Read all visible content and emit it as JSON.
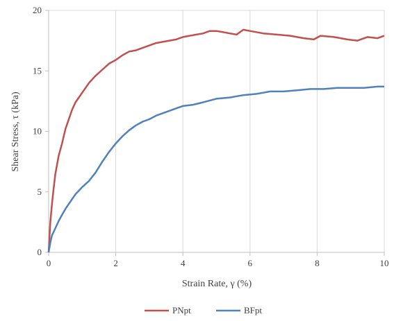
{
  "chart_data": {
    "type": "line",
    "title": "",
    "xlabel": "Strain Rate, γ (%)",
    "ylabel": "Shear Stress, τ (kPa)",
    "xlim": [
      0,
      10
    ],
    "ylim": [
      0,
      20
    ],
    "x_ticks": [
      0,
      2,
      4,
      6,
      8,
      10
    ],
    "y_ticks": [
      0,
      5,
      10,
      15,
      20
    ],
    "x_tick_labels": [
      "0",
      "2",
      "4",
      "6",
      "8",
      "10"
    ],
    "y_tick_labels": [
      "0",
      "5",
      "10",
      "15",
      "20"
    ],
    "grid": "vertical",
    "legend_position": "bottom",
    "series": [
      {
        "name": "PNpt",
        "color": "#c0504d",
        "points": [
          [
            0,
            0
          ],
          [
            0.05,
            2.5
          ],
          [
            0.1,
            4.0
          ],
          [
            0.15,
            5.3
          ],
          [
            0.2,
            6.5
          ],
          [
            0.3,
            8.0
          ],
          [
            0.4,
            9.0
          ],
          [
            0.5,
            10.2
          ],
          [
            0.6,
            11.0
          ],
          [
            0.7,
            11.8
          ],
          [
            0.8,
            12.4
          ],
          [
            0.9,
            12.8
          ],
          [
            1.0,
            13.2
          ],
          [
            1.2,
            14.0
          ],
          [
            1.4,
            14.6
          ],
          [
            1.6,
            15.1
          ],
          [
            1.8,
            15.6
          ],
          [
            2.0,
            15.9
          ],
          [
            2.2,
            16.3
          ],
          [
            2.4,
            16.6
          ],
          [
            2.6,
            16.7
          ],
          [
            2.8,
            16.9
          ],
          [
            3.0,
            17.1
          ],
          [
            3.2,
            17.3
          ],
          [
            3.4,
            17.4
          ],
          [
            3.6,
            17.5
          ],
          [
            3.8,
            17.6
          ],
          [
            4.0,
            17.8
          ],
          [
            4.2,
            17.9
          ],
          [
            4.4,
            18.0
          ],
          [
            4.6,
            18.1
          ],
          [
            4.8,
            18.3
          ],
          [
            5.0,
            18.3
          ],
          [
            5.2,
            18.2
          ],
          [
            5.4,
            18.1
          ],
          [
            5.6,
            18.0
          ],
          [
            5.8,
            18.4
          ],
          [
            6.0,
            18.3
          ],
          [
            6.4,
            18.1
          ],
          [
            6.8,
            18.0
          ],
          [
            7.2,
            17.9
          ],
          [
            7.6,
            17.7
          ],
          [
            7.9,
            17.6
          ],
          [
            8.1,
            17.9
          ],
          [
            8.5,
            17.8
          ],
          [
            8.9,
            17.6
          ],
          [
            9.2,
            17.5
          ],
          [
            9.5,
            17.8
          ],
          [
            9.8,
            17.7
          ],
          [
            10.0,
            17.9
          ]
        ]
      },
      {
        "name": "BFpt",
        "color": "#4f81bd",
        "points": [
          [
            0,
            0
          ],
          [
            0.05,
            0.8
          ],
          [
            0.1,
            1.4
          ],
          [
            0.2,
            2.0
          ],
          [
            0.3,
            2.6
          ],
          [
            0.4,
            3.1
          ],
          [
            0.5,
            3.6
          ],
          [
            0.6,
            4.0
          ],
          [
            0.7,
            4.4
          ],
          [
            0.8,
            4.8
          ],
          [
            0.9,
            5.1
          ],
          [
            1.0,
            5.4
          ],
          [
            1.2,
            5.9
          ],
          [
            1.4,
            6.6
          ],
          [
            1.6,
            7.5
          ],
          [
            1.8,
            8.3
          ],
          [
            2.0,
            9.0
          ],
          [
            2.2,
            9.6
          ],
          [
            2.4,
            10.1
          ],
          [
            2.6,
            10.5
          ],
          [
            2.8,
            10.8
          ],
          [
            3.0,
            11.0
          ],
          [
            3.2,
            11.3
          ],
          [
            3.4,
            11.5
          ],
          [
            3.6,
            11.7
          ],
          [
            3.8,
            11.9
          ],
          [
            4.0,
            12.1
          ],
          [
            4.3,
            12.2
          ],
          [
            4.6,
            12.4
          ],
          [
            5.0,
            12.7
          ],
          [
            5.4,
            12.8
          ],
          [
            5.8,
            13.0
          ],
          [
            6.2,
            13.1
          ],
          [
            6.6,
            13.3
          ],
          [
            7.0,
            13.3
          ],
          [
            7.4,
            13.4
          ],
          [
            7.8,
            13.5
          ],
          [
            8.2,
            13.5
          ],
          [
            8.6,
            13.6
          ],
          [
            9.0,
            13.6
          ],
          [
            9.4,
            13.6
          ],
          [
            9.8,
            13.7
          ],
          [
            10.0,
            13.7
          ]
        ]
      }
    ]
  }
}
